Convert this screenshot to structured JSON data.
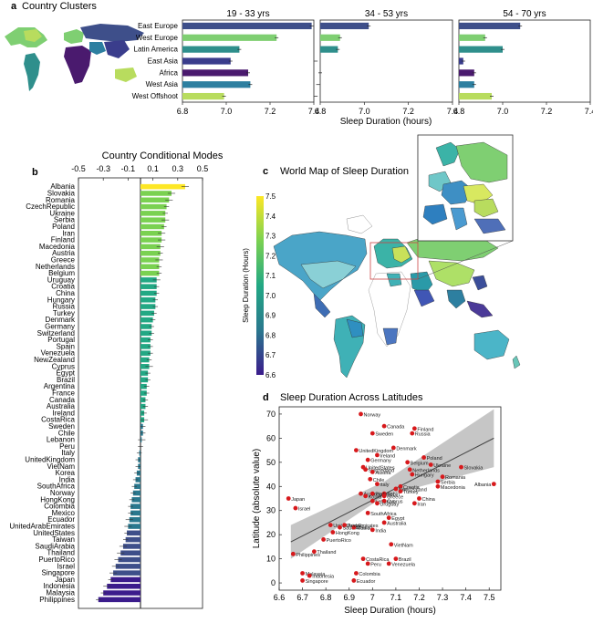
{
  "panel_letters": {
    "a": "a",
    "b": "b",
    "c": "c",
    "d": "d"
  },
  "panel_titles": {
    "a": "Country Clusters",
    "b": "Country Conditional Modes",
    "c": "World Map of Sleep Duration",
    "d": "Sleep Duration Across Latitudes"
  },
  "chart_data": [
    {
      "id": "clusters_by_age",
      "type": "bar",
      "xlabel": "Sleep Duration (hours)",
      "xlim": [
        6.8,
        7.4
      ],
      "xticks": [
        6.8,
        7.0,
        7.2,
        7.4
      ],
      "categories": [
        "East Europe",
        "West Europe",
        "Latin America",
        "East Asia",
        "Africa",
        "West Asia",
        "West Offshoot"
      ],
      "series": [
        {
          "name": "19 - 33 yrs",
          "values": [
            7.39,
            7.23,
            7.06,
            7.02,
            7.1,
            7.11,
            6.99
          ]
        },
        {
          "name": "34 - 53 yrs",
          "values": [
            7.02,
            6.89,
            6.88,
            6.78,
            6.8,
            6.79,
            6.78
          ]
        },
        {
          "name": "54 - 70 yrs",
          "values": [
            7.08,
            6.92,
            7.0,
            6.82,
            6.87,
            6.87,
            6.95
          ]
        }
      ],
      "colors": [
        "#3e4f8a",
        "#7fcf72",
        "#2f8f8c",
        "#3a3d8c",
        "#4a1a6e",
        "#2d7fa0",
        "#b8dc5e"
      ]
    },
    {
      "id": "country_modes",
      "type": "bar",
      "orientation": "horizontal",
      "title": "Country Conditional Modes",
      "xlim": [
        -0.5,
        0.5
      ],
      "xticks": [
        "-0.5",
        "-0.3",
        "-0.1",
        "0.1",
        "0.3",
        "0.5"
      ],
      "categories": [
        "Albania",
        "Slovakia",
        "Romania",
        "CzechRepublic",
        "Ukraine",
        "Serbia",
        "Poland",
        "Iran",
        "Finland",
        "Macedonia",
        "Austria",
        "Greece",
        "Netherlands",
        "Belgium",
        "Uruguay",
        "Croatia",
        "China",
        "Hungary",
        "Russia",
        "Turkey",
        "Denmark",
        "Germany",
        "Switzerland",
        "Portugal",
        "Spain",
        "Venezuela",
        "NewZealand",
        "Cyprus",
        "Egypt",
        "Brazil",
        "Argentina",
        "France",
        "Canada",
        "Australia",
        "Ireland",
        "CostaRica",
        "Sweden",
        "Chile",
        "Lebanon",
        "Peru",
        "Italy",
        "UnitedKingdom",
        "VietNam",
        "Korea",
        "India",
        "SouthAfrica",
        "Norway",
        "HongKong",
        "Colombia",
        "Mexico",
        "Ecuador",
        "UnitedArabEmirates",
        "UnitedStates",
        "Taiwan",
        "SaudiArabia",
        "Thailand",
        "PuertoRico",
        "Israel",
        "Singapore",
        "Japan",
        "Indonesia",
        "Malaysia",
        "Philippines"
      ],
      "values": [
        0.36,
        0.25,
        0.23,
        0.21,
        0.2,
        0.2,
        0.19,
        0.17,
        0.17,
        0.16,
        0.16,
        0.15,
        0.15,
        0.15,
        0.13,
        0.13,
        0.13,
        0.12,
        0.12,
        0.11,
        0.1,
        0.09,
        0.09,
        0.08,
        0.08,
        0.08,
        0.07,
        0.07,
        0.06,
        0.06,
        0.05,
        0.05,
        0.04,
        0.04,
        0.03,
        0.03,
        0.02,
        0.02,
        0.01,
        0.0,
        -0.01,
        -0.02,
        -0.02,
        -0.03,
        -0.04,
        -0.05,
        -0.06,
        -0.07,
        -0.08,
        -0.08,
        -0.09,
        -0.1,
        -0.11,
        -0.12,
        -0.14,
        -0.16,
        -0.18,
        -0.2,
        -0.22,
        -0.24,
        -0.27,
        -0.3,
        -0.34
      ],
      "errors": [
        0.03,
        0.03,
        0.03,
        0.02,
        0.02,
        0.03,
        0.02,
        0.03,
        0.03,
        0.03,
        0.02,
        0.03,
        0.02,
        0.02,
        0.03,
        0.02,
        0.02,
        0.02,
        0.02,
        0.02,
        0.02,
        0.02,
        0.02,
        0.02,
        0.02,
        0.02,
        0.02,
        0.03,
        0.02,
        0.02,
        0.02,
        0.02,
        0.02,
        0.02,
        0.02,
        0.03,
        0.02,
        0.02,
        0.03,
        0.02,
        0.02,
        0.02,
        0.02,
        0.02,
        0.02,
        0.02,
        0.02,
        0.02,
        0.02,
        0.02,
        0.03,
        0.03,
        0.02,
        0.02,
        0.03,
        0.03,
        0.03,
        0.03,
        0.03,
        0.02,
        0.03,
        0.02,
        0.02
      ]
    },
    {
      "id": "world_map",
      "type": "heatmap",
      "title": "World Map of Sleep Duration",
      "colorbar_label": "Sleep Duration (Hours)",
      "colorbar_ticks": [
        "7.5",
        "7.4",
        "7.3",
        "7.2",
        "7.1",
        "7.0",
        "6.9",
        "6.8",
        "6.7",
        "6.6"
      ]
    },
    {
      "id": "latitude",
      "type": "scatter",
      "xlabel": "Sleep Duration (hours)",
      "ylabel": "Latitude (absolute value)",
      "xlim": [
        6.6,
        7.55
      ],
      "ylim": [
        -3,
        73
      ],
      "xticks": [
        "6.6",
        "6.7",
        "6.8",
        "6.9",
        "7",
        "7.1",
        "7.2",
        "7.3",
        "7.4",
        "7.5"
      ],
      "yticks": [
        "0",
        "10",
        "20",
        "30",
        "40",
        "50",
        "60",
        "70"
      ],
      "fit": {
        "x": [
          6.65,
          7.52
        ],
        "y": [
          17,
          60
        ]
      },
      "points": [
        {
          "name": "Norway",
          "x": 6.95,
          "y": 70
        },
        {
          "name": "Canada",
          "x": 7.05,
          "y": 65
        },
        {
          "name": "Finland",
          "x": 7.18,
          "y": 64
        },
        {
          "name": "Sweden",
          "x": 7.0,
          "y": 62
        },
        {
          "name": "Russia",
          "x": 7.17,
          "y": 62
        },
        {
          "name": "UnitedKingdom",
          "x": 6.93,
          "y": 55
        },
        {
          "name": "Denmark",
          "x": 7.09,
          "y": 56
        },
        {
          "name": "Ireland",
          "x": 7.02,
          "y": 53
        },
        {
          "name": "Germany",
          "x": 6.98,
          "y": 51
        },
        {
          "name": "Poland",
          "x": 7.22,
          "y": 52
        },
        {
          "name": "Belgium",
          "x": 7.15,
          "y": 50
        },
        {
          "name": "Ukraine",
          "x": 7.25,
          "y": 49
        },
        {
          "name": "Slovakia",
          "x": 7.38,
          "y": 48
        },
        {
          "name": "UnitedStates",
          "x": 6.96,
          "y": 48
        },
        {
          "name": "Netherlands",
          "x": 7.16,
          "y": 47
        },
        {
          "name": "Switzerland",
          "x": 6.97,
          "y": 47
        },
        {
          "name": "Austria",
          "x": 7.0,
          "y": 46
        },
        {
          "name": "Hungary",
          "x": 7.17,
          "y": 45
        },
        {
          "name": "Romania",
          "x": 7.3,
          "y": 44
        },
        {
          "name": "Chile",
          "x": 6.99,
          "y": 43
        },
        {
          "name": "Serbia",
          "x": 7.28,
          "y": 42
        },
        {
          "name": "Italy",
          "x": 7.02,
          "y": 41
        },
        {
          "name": "Croatia",
          "x": 7.12,
          "y": 40
        },
        {
          "name": "Macedonia",
          "x": 7.28,
          "y": 40
        },
        {
          "name": "Albania",
          "x": 7.52,
          "y": 41
        },
        {
          "name": "NewZealand",
          "x": 7.1,
          "y": 39
        },
        {
          "name": "Turkey",
          "x": 7.12,
          "y": 38
        },
        {
          "name": "Argentina",
          "x": 6.95,
          "y": 37
        },
        {
          "name": "Spain",
          "x": 7.05,
          "y": 37
        },
        {
          "name": "Portugal",
          "x": 7.0,
          "y": 37
        },
        {
          "name": "Korea",
          "x": 6.97,
          "y": 36
        },
        {
          "name": "Greece",
          "x": 7.05,
          "y": 36
        },
        {
          "name": "Japan",
          "x": 6.64,
          "y": 35
        },
        {
          "name": "China",
          "x": 7.2,
          "y": 35
        },
        {
          "name": "Lebanon",
          "x": 7.0,
          "y": 34
        },
        {
          "name": "Cyprus",
          "x": 7.05,
          "y": 34
        },
        {
          "name": "Uruguay",
          "x": 7.02,
          "y": 33
        },
        {
          "name": "Iran",
          "x": 7.18,
          "y": 33
        },
        {
          "name": "Israel",
          "x": 6.67,
          "y": 31
        },
        {
          "name": "SouthAfrica",
          "x": 6.98,
          "y": 29
        },
        {
          "name": "Egypt",
          "x": 7.07,
          "y": 27
        },
        {
          "name": "Australia",
          "x": 7.05,
          "y": 25
        },
        {
          "name": "UnitedArabEmirates",
          "x": 6.82,
          "y": 24
        },
        {
          "name": "SaudiArabia",
          "x": 6.86,
          "y": 23
        },
        {
          "name": "Mexico",
          "x": 6.92,
          "y": 23
        },
        {
          "name": "Taiwan",
          "x": 6.88,
          "y": 24
        },
        {
          "name": "India",
          "x": 7.0,
          "y": 22
        },
        {
          "name": "HongKong",
          "x": 6.83,
          "y": 21
        },
        {
          "name": "PuertoRico",
          "x": 6.79,
          "y": 18
        },
        {
          "name": "VietNam",
          "x": 7.08,
          "y": 16
        },
        {
          "name": "Thailand",
          "x": 6.75,
          "y": 13
        },
        {
          "name": "Philippines",
          "x": 6.66,
          "y": 12
        },
        {
          "name": "CostaRica",
          "x": 6.96,
          "y": 10
        },
        {
          "name": "Brazil",
          "x": 7.1,
          "y": 10
        },
        {
          "name": "Peru",
          "x": 6.98,
          "y": 8
        },
        {
          "name": "Venezuela",
          "x": 7.07,
          "y": 8
        },
        {
          "name": "Malaysia",
          "x": 6.7,
          "y": 4
        },
        {
          "name": "Indonesia",
          "x": 6.73,
          "y": 3
        },
        {
          "name": "Colombia",
          "x": 6.93,
          "y": 4
        },
        {
          "name": "Singapore",
          "x": 6.7,
          "y": 1
        },
        {
          "name": "Ecuador",
          "x": 6.92,
          "y": 1
        }
      ]
    }
  ]
}
